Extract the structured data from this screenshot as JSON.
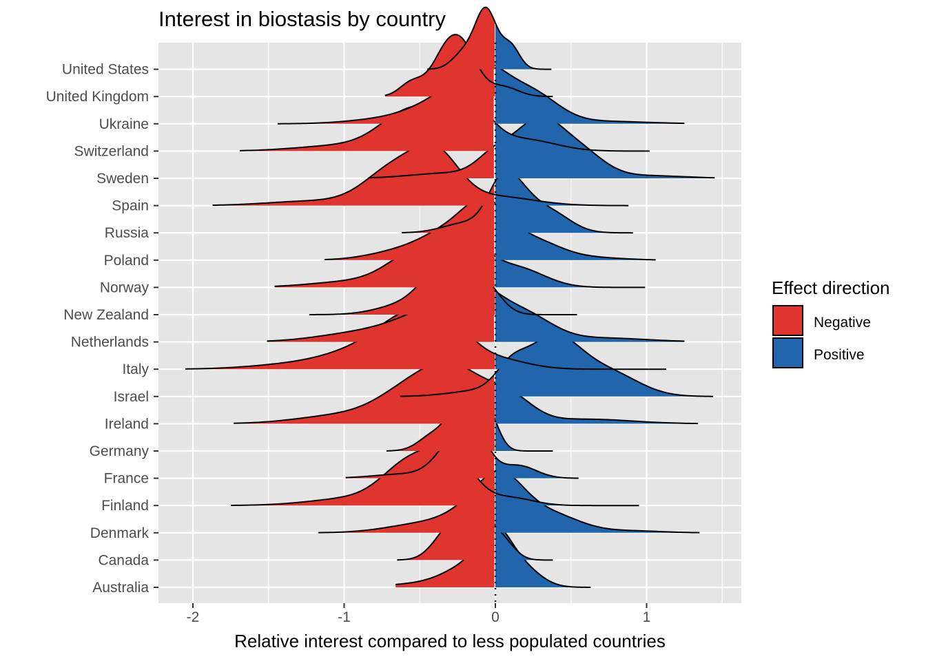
{
  "chart_data": {
    "type": "ridgeline",
    "title": "Interest in biostasis by country",
    "xlabel": "Relative interest compared to less populated countries",
    "ylabel": "",
    "xlim": [
      -2.2,
      1.6
    ],
    "x_ticks": [
      "-2",
      "-1",
      "0",
      "1"
    ],
    "x_tick_values": [
      -2,
      -1,
      0,
      1
    ],
    "reference_line": {
      "x": 0,
      "style": "dotted"
    },
    "grid": true,
    "legend": {
      "title": "Effect direction",
      "position": "right",
      "entries": [
        {
          "label": "Negative",
          "color": "#e0352f"
        },
        {
          "label": "Positive",
          "color": "#2166ac"
        }
      ]
    },
    "categories": [
      "Australia",
      "Canada",
      "Denmark",
      "Finland",
      "France",
      "Germany",
      "Ireland",
      "Israel",
      "Italy",
      "Netherlands",
      "New Zealand",
      "Norway",
      "Poland",
      "Russia",
      "Spain",
      "Sweden",
      "Switzerland",
      "Ukraine",
      "United Kingdom",
      "United States"
    ],
    "series": [
      {
        "name": "Australia",
        "min": -0.66,
        "max": 0.63,
        "peaks": [
          [
            -0.45,
            0.1,
            0.25
          ],
          [
            -0.12,
            0.65,
            0.18
          ],
          [
            0.0,
            1.0,
            0.1
          ],
          [
            0.18,
            0.45,
            0.12
          ]
        ]
      },
      {
        "name": "Canada",
        "min": -0.65,
        "max": 0.38,
        "peaks": [
          [
            -0.32,
            0.45,
            0.1
          ],
          [
            -0.14,
            1.0,
            0.1
          ],
          [
            0.05,
            0.3,
            0.08
          ]
        ]
      },
      {
        "name": "Denmark",
        "min": -1.17,
        "max": 1.35,
        "peaks": [
          [
            -0.45,
            0.25,
            0.25
          ],
          [
            -0.1,
            0.6,
            0.18
          ],
          [
            0.05,
            1.0,
            0.15
          ],
          [
            0.35,
            0.5,
            0.2
          ],
          [
            0.9,
            0.05,
            0.2
          ]
        ]
      },
      {
        "name": "Finland",
        "min": -1.75,
        "max": 0.95,
        "peaks": [
          [
            -0.9,
            0.15,
            0.3
          ],
          [
            -0.55,
            0.8,
            0.18
          ],
          [
            -0.28,
            0.85,
            0.14
          ],
          [
            0.1,
            0.15,
            0.15
          ]
        ]
      },
      {
        "name": "France",
        "min": -0.99,
        "max": 0.55,
        "peaks": [
          [
            -0.6,
            0.1,
            0.2
          ],
          [
            -0.28,
            0.7,
            0.12
          ],
          [
            -0.15,
            1.0,
            0.1
          ],
          [
            0.15,
            0.3,
            0.12
          ]
        ]
      },
      {
        "name": "Germany",
        "min": -0.72,
        "max": 0.38,
        "peaks": [
          [
            -0.4,
            0.3,
            0.1
          ],
          [
            -0.2,
            1.0,
            0.09
          ],
          [
            -0.05,
            0.6,
            0.07
          ]
        ]
      },
      {
        "name": "Ireland",
        "min": -1.73,
        "max": 1.34,
        "peaks": [
          [
            -1.0,
            0.15,
            0.3
          ],
          [
            -0.55,
            0.55,
            0.22
          ],
          [
            -0.25,
            0.8,
            0.2
          ],
          [
            0.1,
            0.4,
            0.15
          ],
          [
            0.6,
            0.08,
            0.3
          ]
        ]
      },
      {
        "name": "Israel",
        "min": -0.63,
        "max": 1.44,
        "peaks": [
          [
            -0.1,
            0.1,
            0.2
          ],
          [
            0.1,
            0.35,
            0.1
          ],
          [
            0.38,
            1.0,
            0.18
          ],
          [
            0.75,
            0.4,
            0.2
          ]
        ]
      },
      {
        "name": "Italy",
        "min": -2.05,
        "max": 1.13,
        "peaks": [
          [
            -1.3,
            0.1,
            0.3
          ],
          [
            -0.85,
            0.35,
            0.25
          ],
          [
            -0.55,
            0.85,
            0.2
          ],
          [
            -0.3,
            0.55,
            0.15
          ],
          [
            0.0,
            0.2,
            0.2
          ]
        ]
      },
      {
        "name": "Netherlands",
        "min": -1.51,
        "max": 1.25,
        "peaks": [
          [
            -0.85,
            0.2,
            0.3
          ],
          [
            -0.45,
            0.45,
            0.22
          ],
          [
            -0.15,
            1.0,
            0.18
          ],
          [
            0.2,
            0.5,
            0.18
          ],
          [
            0.7,
            0.08,
            0.3
          ]
        ]
      },
      {
        "name": "New Zealand",
        "min": -1.23,
        "max": 0.54,
        "peaks": [
          [
            -0.6,
            0.2,
            0.18
          ],
          [
            -0.42,
            0.45,
            0.12
          ],
          [
            -0.25,
            1.0,
            0.12
          ],
          [
            -0.05,
            0.45,
            0.1
          ]
        ]
      },
      {
        "name": "Norway",
        "min": -1.46,
        "max": 0.99,
        "peaks": [
          [
            -0.9,
            0.12,
            0.3
          ],
          [
            -0.55,
            0.5,
            0.18
          ],
          [
            -0.25,
            1.0,
            0.17
          ],
          [
            0.15,
            0.35,
            0.18
          ]
        ]
      },
      {
        "name": "Poland",
        "min": -1.13,
        "max": 1.06,
        "peaks": [
          [
            -0.6,
            0.2,
            0.22
          ],
          [
            -0.3,
            0.5,
            0.18
          ],
          [
            -0.06,
            1.0,
            0.15
          ],
          [
            0.25,
            0.4,
            0.18
          ],
          [
            0.65,
            0.05,
            0.2
          ]
        ]
      },
      {
        "name": "Russia",
        "min": -0.62,
        "max": 0.91,
        "peaks": [
          [
            -0.2,
            0.2,
            0.15
          ],
          [
            0.02,
            0.3,
            0.08
          ],
          [
            0.1,
            1.0,
            0.12
          ],
          [
            0.35,
            0.45,
            0.14
          ]
        ]
      },
      {
        "name": "Spain",
        "min": -1.87,
        "max": 0.88,
        "peaks": [
          [
            -1.2,
            0.1,
            0.3
          ],
          [
            -0.65,
            0.85,
            0.2
          ],
          [
            -0.38,
            0.9,
            0.15
          ],
          [
            0.0,
            0.2,
            0.25
          ]
        ]
      },
      {
        "name": "Sweden",
        "min": -0.84,
        "max": 1.45,
        "peaks": [
          [
            -0.3,
            0.1,
            0.25
          ],
          [
            0.0,
            0.4,
            0.12
          ],
          [
            0.28,
            1.0,
            0.15
          ],
          [
            0.55,
            0.5,
            0.16
          ],
          [
            1.0,
            0.05,
            0.25
          ]
        ]
      },
      {
        "name": "Switzerland",
        "min": -1.69,
        "max": 1.02,
        "peaks": [
          [
            -1.0,
            0.1,
            0.3
          ],
          [
            -0.55,
            0.7,
            0.2
          ],
          [
            -0.2,
            0.9,
            0.15
          ],
          [
            0.2,
            0.2,
            0.2
          ]
        ]
      },
      {
        "name": "Ukraine",
        "min": -1.44,
        "max": 1.25,
        "peaks": [
          [
            -0.7,
            0.1,
            0.25
          ],
          [
            -0.35,
            0.4,
            0.2
          ],
          [
            -0.08,
            1.0,
            0.17
          ],
          [
            0.25,
            0.55,
            0.17
          ],
          [
            0.7,
            0.05,
            0.3
          ]
        ]
      },
      {
        "name": "United Kingdom",
        "min": -0.73,
        "max": 0.38,
        "peaks": [
          [
            -0.55,
            0.3,
            0.08
          ],
          [
            -0.35,
            0.6,
            0.09
          ],
          [
            -0.22,
            1.0,
            0.1
          ],
          [
            0.05,
            0.2,
            0.1
          ]
        ]
      },
      {
        "name": "United States",
        "min": -0.45,
        "max": 0.37,
        "peaks": [
          [
            -0.2,
            0.3,
            0.08
          ],
          [
            -0.06,
            1.0,
            0.07
          ],
          [
            0.1,
            0.4,
            0.06
          ]
        ]
      }
    ]
  }
}
